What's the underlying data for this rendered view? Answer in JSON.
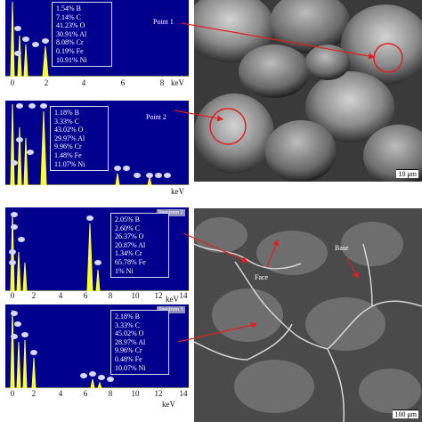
{
  "spectra": [
    {
      "composition": [
        "1.54% B",
        "7.14% C",
        "41.23% O",
        "30.91% Al",
        "8.08% Cr",
        "0.19% Fe",
        "10.91% Ni"
      ],
      "callout": "Point 1",
      "ticks": [
        "0",
        "2",
        "4",
        "6",
        "8"
      ],
      "unit": "keV"
    },
    {
      "composition": [
        "1.18% B",
        "3.33% C",
        "43.02% O",
        "29.97% Al",
        "9.96% Cr",
        "1.48% Fe",
        "11.07% Ni"
      ],
      "callout": "Point 2",
      "unit": "keV"
    },
    {
      "composition": [
        "2.05% B",
        "2.60% C",
        "26.37% O",
        "20.87% Al",
        "1.34% Cr",
        "65.78% Fe",
        "1% Ni"
      ],
      "tag": "Spectrum 2",
      "ticks": [
        "0",
        "2",
        "4",
        "6",
        "8",
        "10",
        "12",
        "14"
      ],
      "unit": "keV"
    },
    {
      "composition": [
        "2.18% B",
        "3.33% C",
        "45.02% O",
        "28.97% Al",
        "9.96% Cr",
        "0.48% Fe",
        "10.07% Ni"
      ],
      "tag": "Spectrum 3",
      "ticks": [
        "0",
        "2",
        "4",
        "6",
        "8",
        "10",
        "12",
        "14"
      ],
      "unit": "keV"
    }
  ],
  "micrographs": {
    "top": {
      "scale_bar": "10 μm"
    },
    "bottom": {
      "scale_bar": "100 μm",
      "labels": [
        "Face",
        "Base"
      ]
    }
  }
}
